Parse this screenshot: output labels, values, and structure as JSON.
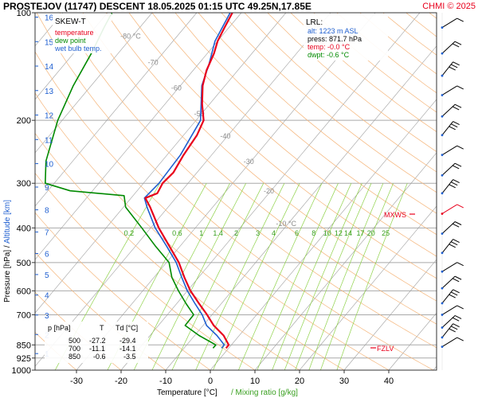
{
  "header": {
    "title": "PROSTEJOV (11747)   DESCENT   18.05.2025 01:15 UTC  49.25N,17.85E",
    "copyright": "CHMI © 2025"
  },
  "legend": {
    "title": "SKEW-T",
    "items": [
      {
        "label": "temperature",
        "color": "#e8001c"
      },
      {
        "label": "dew point",
        "color": "#008a00"
      },
      {
        "label": "wet bulb temp.",
        "color": "#1f5fd0"
      }
    ]
  },
  "lrl_box": {
    "title": "LRL:",
    "alt": "alt: 1223 m ASL",
    "press": "press: 871.7 hPa",
    "temp": "temp: -0.0 °C",
    "dwpt": "dwpt: -0.6 °C"
  },
  "table": {
    "headers": [
      "p [hPa]",
      "T",
      "Td [°C]"
    ],
    "rows": [
      [
        "500",
        "-27.2",
        "-29.4"
      ],
      [
        "700",
        "-11.1",
        "-14.1"
      ],
      [
        "850",
        "-0.6",
        "-3.5"
      ]
    ]
  },
  "markers": {
    "mxws": "MXWS",
    "fzlv": "FZLV"
  },
  "axis_labels": {
    "x": "Temperature [°C]",
    "x_extra": "/  Mixing ratio [g/kg]",
    "y_pressure": "Pressure [hPa]",
    "y_sep": " / ",
    "y_altitude": "Altitude [km]"
  },
  "isotherm_labels": [
    "-80 °C",
    "-70",
    "-60",
    "-50",
    "-40",
    "-30",
    "-20",
    "-10 °C"
  ],
  "colors": {
    "temperature": "#e8001c",
    "dewpoint": "#008a00",
    "wetbulb": "#1f5fd0",
    "isotherm": "#9f9f9f",
    "adiabat": "#f5b57a",
    "mixing": "#8fd24a",
    "title": "#000000",
    "accent": "#e8001c"
  },
  "chart_data": {
    "type": "line",
    "x_axis": {
      "label": "Temperature [°C]",
      "ticks": [
        -30,
        -20,
        -10,
        0,
        10,
        20,
        30,
        40
      ],
      "range": [
        -37,
        50
      ]
    },
    "y_axis": {
      "label": "Pressure [hPa]",
      "scale": "log",
      "ticks": [
        100,
        200,
        300,
        400,
        500,
        600,
        700,
        850,
        925,
        1000
      ],
      "range": [
        1000,
        100
      ]
    },
    "altitude_ticks_km": [
      1,
      2,
      3,
      4,
      5,
      6,
      7,
      8,
      9,
      10,
      11,
      12,
      13,
      14,
      15,
      16
    ],
    "mixing_ratio_labels": [
      "0.2",
      "0.6",
      "1",
      "1.4",
      "2",
      "3",
      "4",
      "6",
      "8",
      "10",
      "12",
      "14",
      "17",
      "20",
      "25"
    ],
    "series": [
      {
        "name": "temperature",
        "color": "#e8001c",
        "points": [
          [
            868,
            -0.6
          ],
          [
            850,
            -0.6
          ],
          [
            800,
            -3.5
          ],
          [
            750,
            -7.6
          ],
          [
            700,
            -11.1
          ],
          [
            650,
            -15.1
          ],
          [
            600,
            -19.3
          ],
          [
            550,
            -23.2
          ],
          [
            500,
            -27.2
          ],
          [
            450,
            -32.4
          ],
          [
            400,
            -38.2
          ],
          [
            350,
            -44.0
          ],
          [
            330,
            -46.8
          ],
          [
            320,
            -45.0
          ],
          [
            300,
            -45.7
          ],
          [
            280,
            -45.3
          ],
          [
            250,
            -46.3
          ],
          [
            220,
            -47.0
          ],
          [
            200,
            -48.3
          ],
          [
            180,
            -51.7
          ],
          [
            160,
            -55.0
          ],
          [
            145,
            -57.0
          ],
          [
            130,
            -58.5
          ],
          [
            120,
            -60.0
          ],
          [
            110,
            -61.0
          ],
          [
            100,
            -62.0
          ]
        ]
      },
      {
        "name": "dew point",
        "color": "#008a00",
        "points": [
          [
            868,
            -3.5
          ],
          [
            850,
            -3.5
          ],
          [
            800,
            -9.0
          ],
          [
            750,
            -14.0
          ],
          [
            700,
            -14.1
          ],
          [
            650,
            -18.0
          ],
          [
            600,
            -22.0
          ],
          [
            550,
            -26.0
          ],
          [
            500,
            -29.4
          ],
          [
            450,
            -35.5
          ],
          [
            400,
            -42.0
          ],
          [
            350,
            -49.5
          ],
          [
            325,
            -52.0
          ],
          [
            315,
            -65.0
          ],
          [
            300,
            -72.0
          ],
          [
            260,
            -76.0
          ],
          [
            200,
            -81.0
          ],
          [
            160,
            -84.0
          ],
          [
            130,
            -86.0
          ],
          [
            110,
            -88.0
          ],
          [
            100,
            -89.0
          ]
        ]
      },
      {
        "name": "wet bulb temp.",
        "color": "#1f5fd0",
        "points": [
          [
            868,
            -1.6
          ],
          [
            850,
            -1.6
          ],
          [
            800,
            -5.0
          ],
          [
            750,
            -9.2
          ],
          [
            700,
            -12.2
          ],
          [
            650,
            -16.0
          ],
          [
            600,
            -20.0
          ],
          [
            550,
            -23.8
          ],
          [
            500,
            -27.8
          ],
          [
            450,
            -33.0
          ],
          [
            400,
            -39.0
          ],
          [
            350,
            -44.7
          ],
          [
            330,
            -47.0
          ],
          [
            300,
            -46.5
          ],
          [
            250,
            -47.0
          ],
          [
            200,
            -49.0
          ],
          [
            160,
            -55.2
          ],
          [
            140,
            -57.5
          ],
          [
            120,
            -60.6
          ],
          [
            100,
            -62.5
          ]
        ]
      }
    ],
    "wind_barbs_pressure_hpa": [
      110,
      130,
      150,
      170,
      195,
      220,
      250,
      285,
      320,
      365,
      415,
      470,
      530,
      590,
      650,
      700,
      760,
      810,
      860
    ],
    "mxws_pressure_hpa": 365,
    "fzlv_pressure_hpa": 855,
    "lrl_pressure_hpa": 871.7
  }
}
